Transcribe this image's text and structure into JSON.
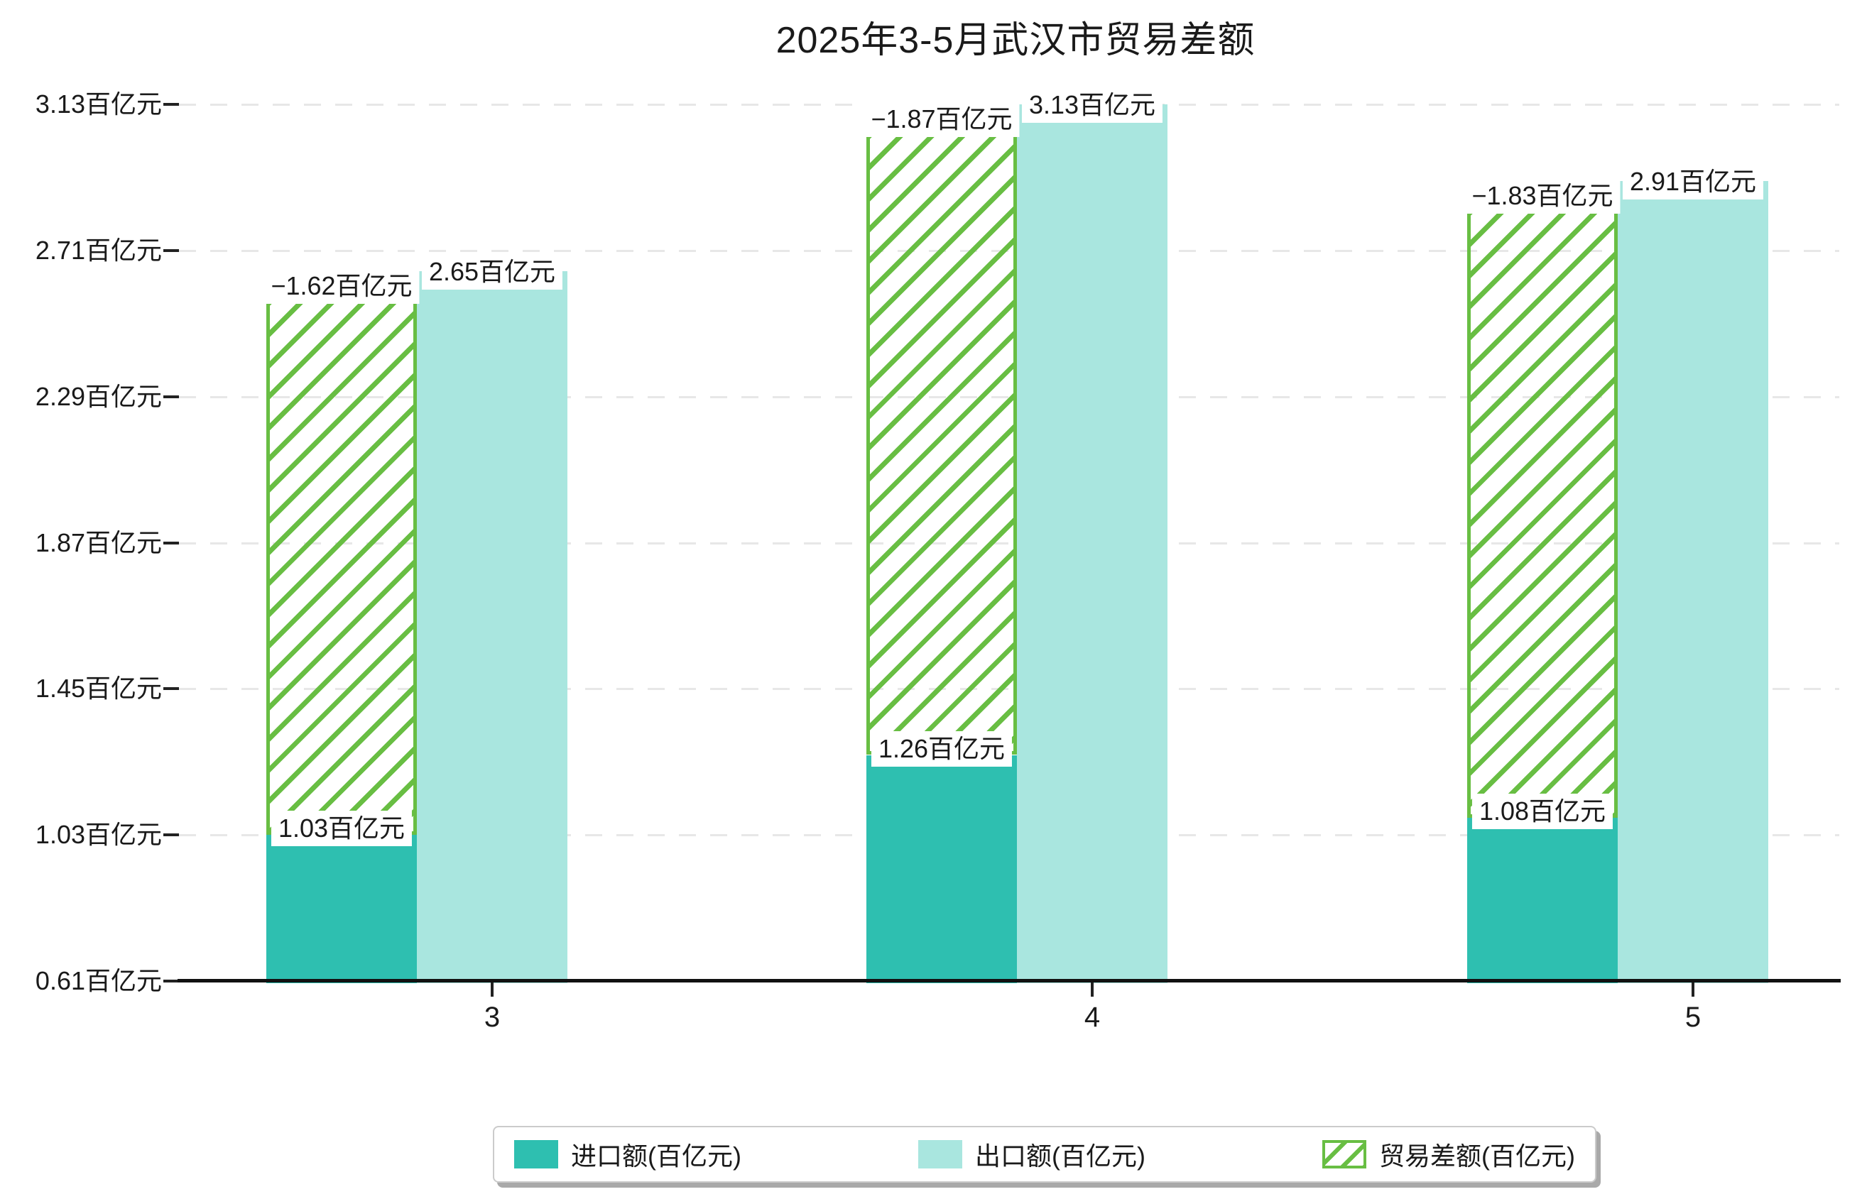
{
  "title": "2025年3-5月武汉市贸易差额",
  "chart_data": {
    "type": "bar",
    "title": "2025年3-5月武汉市贸易差额",
    "categories": [
      "3",
      "4",
      "5"
    ],
    "unit": "百亿元",
    "series": [
      {
        "name": "进口额(百亿元)",
        "key": "import",
        "values": [
          1.03,
          1.26,
          1.08
        ],
        "labels": [
          "1.03百亿元",
          "1.26百亿元",
          "1.08百亿元"
        ],
        "color": "#2ebfb0"
      },
      {
        "name": "出口额(百亿元)",
        "key": "export",
        "values": [
          2.65,
          3.13,
          2.91
        ],
        "labels": [
          "2.65百亿元",
          "3.13百亿元",
          "2.91百亿元"
        ],
        "color": "#a9e6df"
      },
      {
        "name": "贸易差额(百亿元)",
        "key": "balance",
        "values": [
          -1.62,
          -1.87,
          -1.83
        ],
        "labels": [
          "−1.62百亿元",
          "−1.87百亿元",
          "−1.83百亿元"
        ],
        "color": "#68be43",
        "style": "hatched-span",
        "note": "hatched bar drawn from import level up to export level"
      }
    ],
    "y_axis": {
      "tick_values": [
        0.61,
        1.03,
        1.45,
        1.87,
        2.29,
        2.71,
        3.13
      ],
      "tick_labels": [
        "0.61百亿元",
        "1.03百亿元",
        "1.45百亿元",
        "1.87百亿元",
        "2.29百亿元",
        "2.71百亿元",
        "3.13百亿元"
      ],
      "min": 0.61,
      "max": 3.25
    },
    "x_axis": {
      "tick_labels": [
        "3",
        "4",
        "5"
      ]
    },
    "grid": {
      "horizontal": true,
      "dashed": true,
      "color": "#e7e7e7"
    },
    "legend_position": "bottom-center"
  }
}
